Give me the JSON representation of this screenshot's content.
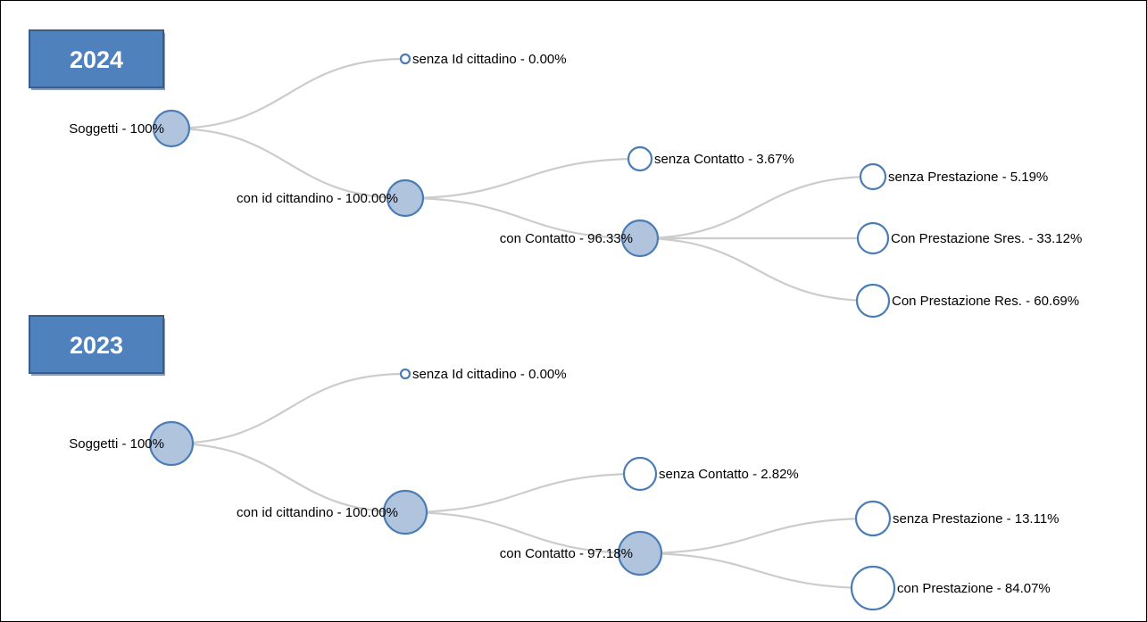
{
  "colors": {
    "badge_fill": "#4f81bd",
    "badge_border": "#385d8a",
    "link_stroke": "#cccccc",
    "node_stroke": "#4a7cb5",
    "node_collapsed_fill": "#b0c4de",
    "node_leaf_fill": "#ffffff"
  },
  "trees": [
    {
      "year": "2024",
      "nodes": [
        {
          "id": "root",
          "label": "Soggetti - 100%",
          "parent": null,
          "fill": "collapsed"
        },
        {
          "id": "senza-id",
          "label": "senza Id cittadino - 0.00%",
          "parent": "root",
          "fill": "leaf"
        },
        {
          "id": "con-id",
          "label": "con id cittandino - 100.00%",
          "parent": "root",
          "fill": "collapsed"
        },
        {
          "id": "senza-contatto",
          "label": "senza Contatto - 3.67%",
          "parent": "con-id",
          "fill": "leaf"
        },
        {
          "id": "con-contatto",
          "label": "con Contatto - 96.33%",
          "parent": "con-id",
          "fill": "collapsed"
        },
        {
          "id": "senza-prestazione",
          "label": "senza Prestazione - 5.19%",
          "parent": "con-contatto",
          "fill": "leaf"
        },
        {
          "id": "prestazione-sres",
          "label": "Con Prestazione Sres. - 33.12%",
          "parent": "con-contatto",
          "fill": "leaf"
        },
        {
          "id": "prestazione-res",
          "label": "Con Prestazione Res. - 60.69%",
          "parent": "con-contatto",
          "fill": "leaf"
        }
      ]
    },
    {
      "year": "2023",
      "nodes": [
        {
          "id": "root",
          "label": "Soggetti - 100%",
          "parent": null,
          "fill": "collapsed"
        },
        {
          "id": "senza-id",
          "label": "senza Id cittadino - 0.00%",
          "parent": "root",
          "fill": "leaf"
        },
        {
          "id": "con-id",
          "label": "con id cittandino - 100.00%",
          "parent": "root",
          "fill": "collapsed"
        },
        {
          "id": "senza-contatto",
          "label": "senza Contatto - 2.82%",
          "parent": "con-id",
          "fill": "leaf"
        },
        {
          "id": "con-contatto",
          "label": "con Contatto - 97.18%",
          "parent": "con-id",
          "fill": "collapsed"
        },
        {
          "id": "senza-prestazione",
          "label": "senza Prestazione - 13.11%",
          "parent": "con-contatto",
          "fill": "leaf"
        },
        {
          "id": "con-prestazione",
          "label": "con Prestazione - 84.07%",
          "parent": "con-contatto",
          "fill": "leaf"
        }
      ]
    }
  ]
}
